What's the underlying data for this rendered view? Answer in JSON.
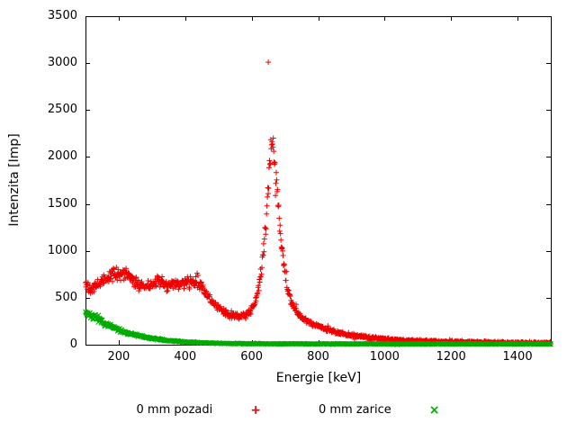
{
  "chart": {
    "xlabel": "Energie [keV]",
    "ylabel": "Intenzita [Imp]",
    "legend": [
      {
        "label": "0 mm pozadi",
        "glyph": "+",
        "color": "#f20000"
      },
      {
        "label": "0 mm zarice",
        "glyph": "×",
        "color": "#00ab00"
      }
    ]
  },
  "chart_data": {
    "type": "scatter",
    "title": "",
    "xlabel": "Energie [keV]",
    "ylabel": "Intenzita [Imp]",
    "xlim": [
      100,
      1500
    ],
    "ylim": [
      0,
      3500
    ],
    "xticks": [
      200,
      400,
      600,
      800,
      1000,
      1200,
      1400
    ],
    "yticks": [
      0,
      500,
      1000,
      1500,
      2000,
      2500,
      3000,
      3500
    ],
    "grid": false,
    "legend_position": "bottom-center",
    "series": [
      {
        "name": "0 mm pozadi",
        "marker": "plus",
        "color": "#f20000",
        "n_points": 1100,
        "noise": {
          "rel": 0.09,
          "abs": 14,
          "seed": 42
        },
        "envelope": [
          [
            100,
            640
          ],
          [
            115,
            600
          ],
          [
            130,
            615
          ],
          [
            145,
            650
          ],
          [
            160,
            700
          ],
          [
            175,
            735
          ],
          [
            190,
            755
          ],
          [
            205,
            755
          ],
          [
            215,
            760
          ],
          [
            230,
            720
          ],
          [
            245,
            680
          ],
          [
            260,
            640
          ],
          [
            275,
            615
          ],
          [
            290,
            625
          ],
          [
            305,
            655
          ],
          [
            320,
            665
          ],
          [
            335,
            640
          ],
          [
            350,
            630
          ],
          [
            365,
            640
          ],
          [
            380,
            650
          ],
          [
            395,
            655
          ],
          [
            410,
            670
          ],
          [
            425,
            675
          ],
          [
            440,
            650
          ],
          [
            455,
            590
          ],
          [
            470,
            510
          ],
          [
            485,
            440
          ],
          [
            500,
            390
          ],
          [
            515,
            345
          ],
          [
            530,
            320
          ],
          [
            545,
            305
          ],
          [
            560,
            300
          ],
          [
            575,
            310
          ],
          [
            590,
            340
          ],
          [
            600,
            380
          ],
          [
            610,
            450
          ],
          [
            620,
            580
          ],
          [
            628,
            760
          ],
          [
            636,
            1020
          ],
          [
            644,
            1380
          ],
          [
            650,
            1750
          ],
          [
            655,
            2000
          ],
          [
            660,
            2150
          ],
          [
            664,
            2120
          ],
          [
            668,
            1980
          ],
          [
            674,
            1750
          ],
          [
            680,
            1480
          ],
          [
            688,
            1150
          ],
          [
            696,
            880
          ],
          [
            705,
            660
          ],
          [
            715,
            500
          ],
          [
            725,
            410
          ],
          [
            740,
            330
          ],
          [
            755,
            280
          ],
          [
            770,
            245
          ],
          [
            785,
            220
          ],
          [
            800,
            200
          ],
          [
            830,
            160
          ],
          [
            860,
            130
          ],
          [
            900,
            100
          ],
          [
            950,
            75
          ],
          [
            1000,
            58
          ],
          [
            1060,
            45
          ],
          [
            1120,
            38
          ],
          [
            1200,
            30
          ],
          [
            1300,
            24
          ],
          [
            1400,
            20
          ],
          [
            1500,
            17
          ]
        ],
        "outliers": [
          [
            650,
            3010
          ]
        ]
      },
      {
        "name": "0 mm zarice",
        "marker": "cross",
        "color": "#00ab00",
        "n_points": 1100,
        "noise": {
          "rel": 0.12,
          "abs": 4,
          "seed": 7
        },
        "envelope": [
          [
            100,
            350
          ],
          [
            110,
            330
          ],
          [
            120,
            305
          ],
          [
            130,
            285
          ],
          [
            140,
            262
          ],
          [
            150,
            240
          ],
          [
            160,
            222
          ],
          [
            170,
            205
          ],
          [
            180,
            188
          ],
          [
            190,
            172
          ],
          [
            200,
            158
          ],
          [
            215,
            140
          ],
          [
            230,
            122
          ],
          [
            245,
            108
          ],
          [
            260,
            95
          ],
          [
            275,
            84
          ],
          [
            290,
            74
          ],
          [
            305,
            65
          ],
          [
            320,
            57
          ],
          [
            335,
            50
          ],
          [
            350,
            44
          ],
          [
            365,
            39
          ],
          [
            380,
            34
          ],
          [
            400,
            29
          ],
          [
            420,
            25
          ],
          [
            440,
            22
          ],
          [
            460,
            19
          ],
          [
            480,
            17
          ],
          [
            500,
            15
          ],
          [
            550,
            12
          ],
          [
            600,
            11
          ],
          [
            650,
            10
          ],
          [
            700,
            10
          ],
          [
            800,
            9
          ],
          [
            900,
            9
          ],
          [
            1000,
            8
          ],
          [
            1100,
            8
          ],
          [
            1200,
            8
          ],
          [
            1300,
            8
          ],
          [
            1400,
            8
          ],
          [
            1500,
            8
          ]
        ],
        "outliers": []
      }
    ]
  }
}
